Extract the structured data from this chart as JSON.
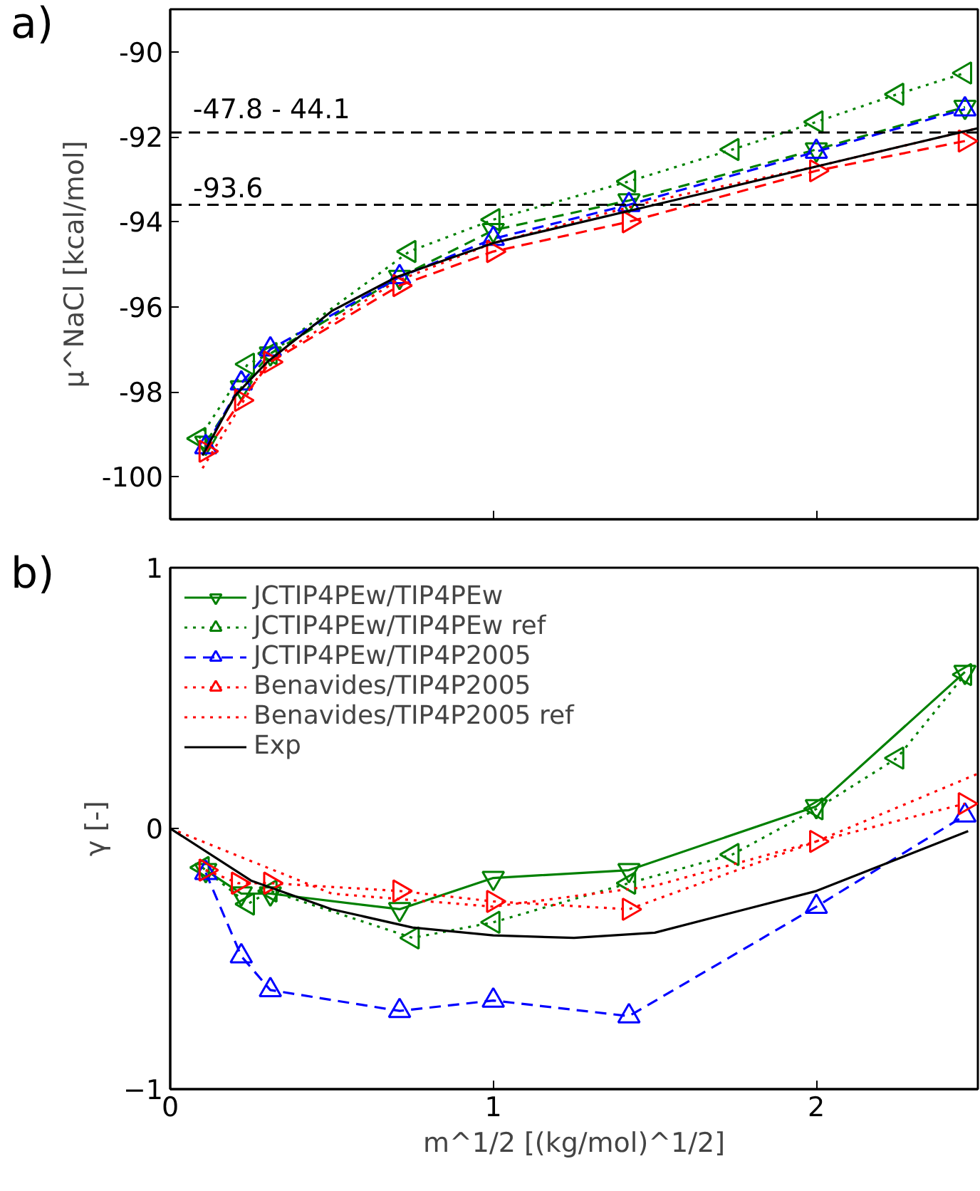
{
  "chart_data": [
    {
      "type": "line",
      "annotations": [
        "a)",
        {
          "text": "-47.8 - 44.1",
          "x": 0.07,
          "y": -91.9
        }
      ],
      "ylabel": "μ^NaCl [kcal/mol]",
      "xlim": [
        0,
        2.5
      ],
      "xticks": [
        0,
        1,
        2
      ],
      "ylim": [
        -101,
        -89
      ],
      "yticks": [
        -100,
        -98,
        -96,
        -94,
        -92,
        -90
      ],
      "tick_labels": "y",
      "grid": false,
      "legend": false,
      "ref_lines": [
        {
          "axis": "y",
          "value": -91.9,
          "color": "#000000",
          "line_style": "dashed"
        },
        {
          "axis": "y",
          "value": -93.6,
          "label": "-93.6",
          "color": "#000000",
          "line_style": "dashed"
        }
      ],
      "series": [
        {
          "color": "#008000",
          "marker": "triangle_down",
          "line_style": "dashed",
          "x": [
            0.11,
            0.22,
            0.31,
            0.71,
            1.0,
            1.42,
            2.0,
            2.46
          ],
          "values": [
            -99.2,
            -97.9,
            -97.1,
            -95.3,
            -94.2,
            -93.5,
            -92.3,
            -91.3
          ]
        },
        {
          "color": "#008000",
          "marker": "triangle_left",
          "line_style": "dotted",
          "x": [
            0.09,
            0.24,
            0.31,
            0.74,
            1.0,
            1.42,
            1.74,
            2.0,
            2.25,
            2.46
          ],
          "values": [
            -99.1,
            -97.35,
            -97.1,
            -94.7,
            -93.95,
            -93.05,
            -92.3,
            -91.65,
            -91.0,
            -90.5
          ]
        },
        {
          "color": "#0000ff",
          "marker": "triangle",
          "line_style": "dashed",
          "x": [
            0.11,
            0.22,
            0.31,
            0.71,
            1.0,
            1.42,
            2.0,
            2.46
          ],
          "values": [
            -99.3,
            -97.8,
            -97.0,
            -95.3,
            -94.4,
            -93.6,
            -92.35,
            -91.35
          ]
        },
        {
          "color": "#ff0000",
          "marker": "triangle_right",
          "line_style": "dashed",
          "x": [
            0.11,
            0.22,
            0.31,
            0.71,
            1.0,
            1.42,
            2.0,
            2.46
          ],
          "values": [
            -99.4,
            -98.2,
            -97.3,
            -95.5,
            -94.7,
            -94.0,
            -92.8,
            -92.1
          ]
        },
        {
          "color": "#ff0000",
          "marker": "none",
          "line_style": "dotted",
          "x": [
            0.1,
            0.3,
            0.7,
            1.0,
            1.5,
            2.0,
            2.5
          ],
          "values": [
            -99.8,
            -97.3,
            -95.4,
            -94.5,
            -93.5,
            -92.7,
            -91.8
          ]
        },
        {
          "color": "#000000",
          "marker": "none",
          "line_style": "solid",
          "x": [
            0.1,
            0.2,
            0.3,
            0.5,
            0.7,
            1.0,
            1.5,
            2.0,
            2.5
          ],
          "values": [
            -99.5,
            -98.1,
            -97.3,
            -96.1,
            -95.3,
            -94.5,
            -93.6,
            -92.7,
            -91.8
          ]
        }
      ]
    },
    {
      "type": "line",
      "annotations": [
        "b)"
      ],
      "xlabel": "m^1/2 [(kg/mol)^1/2]",
      "ylabel": "γ [-]",
      "xlim": [
        0,
        2.5
      ],
      "xticks": [
        0,
        1,
        2
      ],
      "ylim": [
        -1,
        1
      ],
      "yticks": [
        {
          "value": -1,
          "label": "−1"
        },
        0,
        1
      ],
      "grid": false,
      "legend": "top left",
      "series": [
        {
          "name": "JCTIP4PEw/TIP4PEw",
          "color": "#008000",
          "marker": "triangle_down",
          "line_style": "solid",
          "x": [
            0.11,
            0.22,
            0.31,
            0.71,
            1.0,
            1.42,
            2.0,
            2.46
          ],
          "values": [
            -0.16,
            -0.25,
            -0.25,
            -0.31,
            -0.19,
            -0.16,
            0.085,
            0.6
          ]
        },
        {
          "name": "JCTIP4PEw/TIP4PEw ref",
          "color": "#008000",
          "marker": "triangle_left",
          "line_style": "dotted",
          "x": [
            0.1,
            0.24,
            0.31,
            0.75,
            1.0,
            1.42,
            1.74,
            2.0,
            2.25,
            2.46
          ],
          "values": [
            -0.15,
            -0.29,
            -0.24,
            -0.42,
            -0.36,
            -0.21,
            -0.1,
            0.075,
            0.27,
            0.59
          ]
        },
        {
          "name": "JCTIP4PEw/TIP4P2005",
          "color": "#0000ff",
          "marker": "triangle",
          "line_style": "dashed",
          "x": [
            0.11,
            0.22,
            0.31,
            0.71,
            1.0,
            1.42,
            2.0,
            2.46
          ],
          "values": [
            -0.17,
            -0.49,
            -0.62,
            -0.7,
            -0.66,
            -0.72,
            -0.3,
            0.05
          ]
        },
        {
          "name": "Benavides/TIP4P2005",
          "color": "#ff0000",
          "marker": "triangle_right",
          "line_style": "dotted",
          "x": [
            0.11,
            0.21,
            0.31,
            0.71,
            1.0,
            1.42,
            2.0,
            2.46
          ],
          "values": [
            -0.16,
            -0.21,
            -0.21,
            -0.24,
            -0.28,
            -0.31,
            -0.05,
            0.095
          ]
        },
        {
          "name": "Benavides/TIP4P2005 ref",
          "color": "#ff0000",
          "marker": "none",
          "line_style": "dotted",
          "x": [
            0,
            0.5,
            1.0,
            1.5,
            2.0,
            2.5
          ],
          "values": [
            0,
            -0.25,
            -0.3,
            -0.22,
            -0.05,
            0.21
          ]
        },
        {
          "name": "Exp",
          "color": "#000000",
          "marker": "none",
          "line_style": "solid",
          "x": [
            0,
            0.25,
            0.5,
            0.75,
            1.0,
            1.25,
            1.5,
            2.0,
            2.47
          ],
          "values": [
            0,
            -0.2,
            -0.31,
            -0.38,
            -0.41,
            -0.42,
            -0.4,
            -0.24,
            -0.01
          ]
        }
      ]
    }
  ]
}
